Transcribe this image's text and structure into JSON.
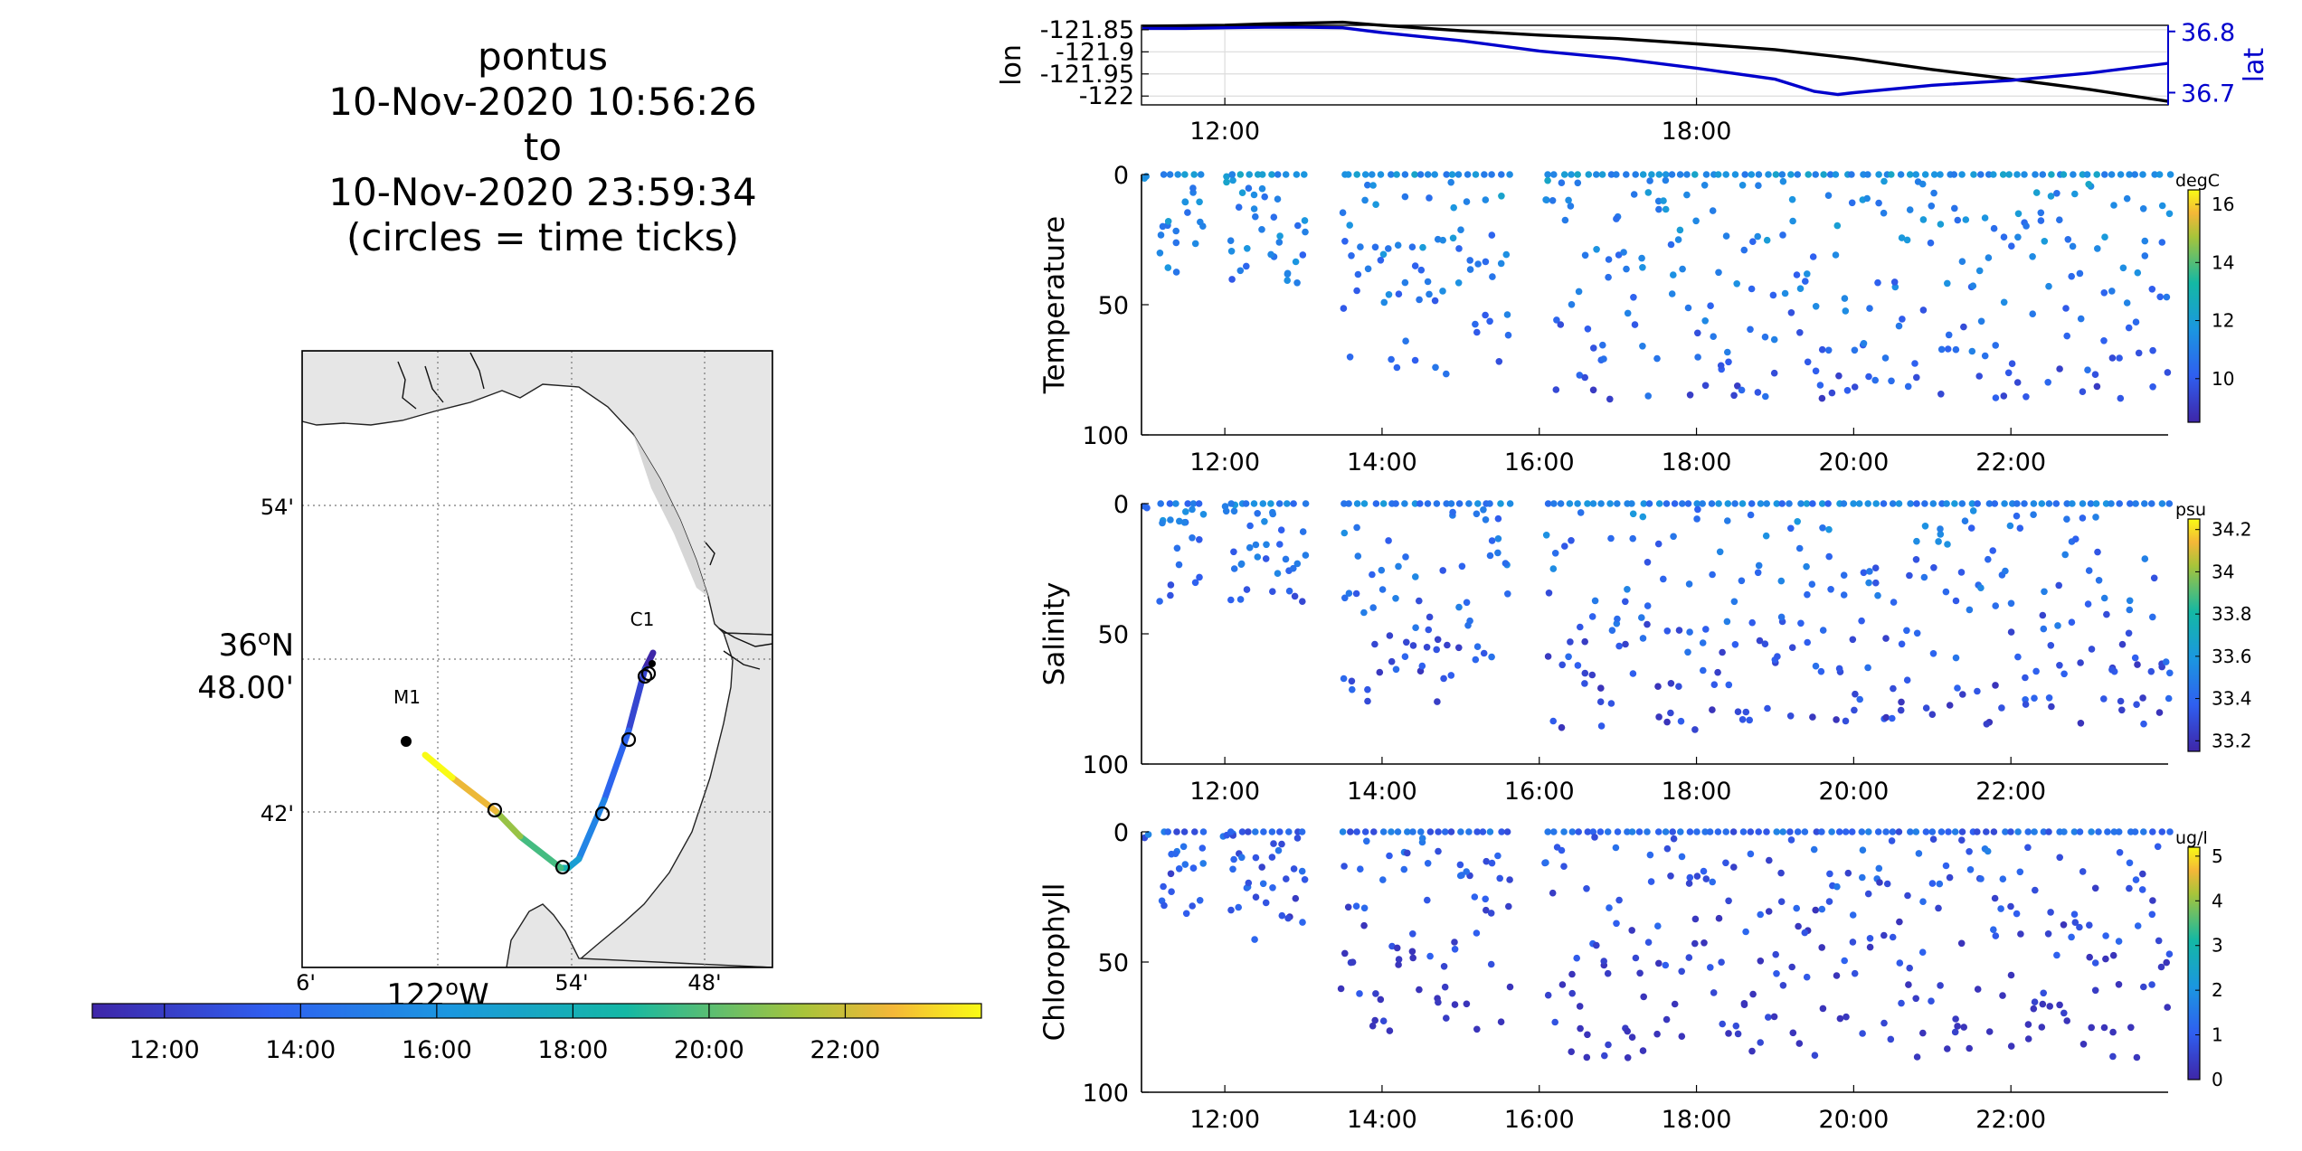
{
  "title": {
    "lines": [
      "pontus",
      "10-Nov-2020 10:56:26",
      "to",
      "10-Nov-2020 23:59:34",
      "(circles = time ticks)"
    ]
  },
  "map": {
    "lat_ticks": [
      "54'",
      "36",
      "48.00'",
      "42'"
    ],
    "lat_major_degree": "o",
    "lat_major_hemisphere": "N",
    "lon_ticks": [
      "6'",
      "54'",
      "48'"
    ],
    "lon_major": "122",
    "lon_major_degree": "o",
    "lon_major_hemisphere": "W",
    "stations": [
      {
        "name": "C1"
      },
      {
        "name": "M1"
      }
    ],
    "land_color": "#e6e6e6",
    "track_color_range": [
      "#3e26a8",
      "#f9fb15"
    ]
  },
  "time_colorbar": {
    "ticks": [
      "12:00",
      "14:00",
      "16:00",
      "18:00",
      "20:00",
      "22:00"
    ]
  },
  "chart_data": [
    {
      "type": "line",
      "name": "position",
      "xlabel": "",
      "ylabel_left": "lon",
      "ylabel_right": "lat",
      "x_ticks": [
        "12:00",
        "18:00"
      ],
      "x_range_hours": [
        10.94,
        24.0
      ],
      "y_left_ticks": [
        "-121.85",
        "-121.9",
        "-121.95",
        "-122"
      ],
      "y_left_range": [
        -122.02,
        -121.84
      ],
      "y_right_ticks": [
        "36.8",
        "36.7"
      ],
      "y_right_range": [
        36.68,
        36.81
      ],
      "grid": true,
      "series": [
        {
          "name": "lon",
          "color": "#000000",
          "x": [
            10.95,
            11.5,
            12.0,
            12.5,
            13.0,
            13.5,
            14.0,
            15.0,
            16.0,
            17.0,
            18.0,
            19.0,
            20.0,
            21.0,
            22.0,
            23.0,
            24.0
          ],
          "y": [
            -121.842,
            -121.841,
            -121.84,
            -121.837,
            -121.835,
            -121.833,
            -121.84,
            -121.852,
            -121.862,
            -121.87,
            -121.882,
            -121.895,
            -121.915,
            -121.94,
            -121.962,
            -121.985,
            -122.012
          ]
        },
        {
          "name": "lat",
          "color": "#0000cc",
          "x": [
            10.95,
            11.5,
            12.0,
            12.5,
            13.0,
            13.5,
            14.0,
            15.0,
            16.0,
            17.0,
            18.0,
            19.0,
            19.5,
            19.8,
            20.0,
            21.0,
            22.0,
            23.0,
            24.0
          ],
          "y": [
            36.805,
            36.805,
            36.806,
            36.807,
            36.807,
            36.806,
            36.798,
            36.785,
            36.768,
            36.756,
            36.74,
            36.722,
            36.702,
            36.697,
            36.7,
            36.712,
            36.72,
            36.732,
            36.748
          ]
        }
      ]
    },
    {
      "type": "scatter",
      "name": "temperature",
      "ylabel": "Temperature",
      "x_ticks": [
        "12:00",
        "14:00",
        "16:00",
        "18:00",
        "20:00",
        "22:00"
      ],
      "x_range_hours": [
        10.94,
        24.0
      ],
      "y_ticks": [
        "0",
        "50",
        "100"
      ],
      "y_range_reversed": [
        0,
        100
      ],
      "colorbar": {
        "unit": "degC",
        "ticks": [
          "16",
          "14",
          "12",
          "10"
        ],
        "range": [
          8.5,
          16.5
        ]
      },
      "low_color": "#3e26a8",
      "high_color": "#f9fb15",
      "color_value": 11.6,
      "min_depth": 38,
      "max_depth": 92,
      "profile_period_hours": 0.2,
      "profiles": [
        {
          "start": 11.0,
          "end": 11.0,
          "depth": 0
        },
        {
          "start": 11.2,
          "end": 11.7,
          "depth": 36
        },
        {
          "start": 12.0,
          "end": 12.1,
          "depth": 0
        },
        {
          "start": 12.1,
          "end": 13.0,
          "depth": 40
        },
        {
          "start": 13.5,
          "end": 15.6,
          "depth": 75
        },
        {
          "start": 16.1,
          "end": 24.0,
          "depth": 85
        }
      ]
    },
    {
      "type": "scatter",
      "name": "salinity",
      "ylabel": "Salinity",
      "x_ticks": [
        "12:00",
        "14:00",
        "16:00",
        "18:00",
        "20:00",
        "22:00"
      ],
      "x_range_hours": [
        10.94,
        24.0
      ],
      "y_ticks": [
        "0",
        "50",
        "100"
      ],
      "y_range_reversed": [
        0,
        100
      ],
      "colorbar": {
        "unit": "psu",
        "ticks": [
          "34.2",
          "34",
          "33.8",
          "33.6",
          "33.4",
          "33.2"
        ],
        "range": [
          33.15,
          34.25
        ]
      },
      "low_color": "#3e26a8",
      "high_color": "#f9fb15",
      "color_value": 33.5,
      "min_depth": 38,
      "max_depth": 92,
      "profile_period_hours": 0.2,
      "profiles": [
        {
          "start": 11.0,
          "end": 11.0,
          "depth": 0
        },
        {
          "start": 11.2,
          "end": 11.7,
          "depth": 36
        },
        {
          "start": 12.0,
          "end": 12.1,
          "depth": 0
        },
        {
          "start": 12.1,
          "end": 13.0,
          "depth": 40
        },
        {
          "start": 13.5,
          "end": 15.6,
          "depth": 75
        },
        {
          "start": 16.1,
          "end": 24.0,
          "depth": 85
        }
      ]
    },
    {
      "type": "scatter",
      "name": "chlorophyll",
      "ylabel": "Chlorophyll",
      "x_ticks": [
        "12:00",
        "14:00",
        "16:00",
        "18:00",
        "20:00",
        "22:00"
      ],
      "x_range_hours": [
        10.94,
        24.0
      ],
      "y_ticks": [
        "0",
        "50",
        "100"
      ],
      "y_range_reversed": [
        0,
        100
      ],
      "colorbar": {
        "unit": "ug/l",
        "ticks": [
          "5",
          "4",
          "3",
          "2",
          "1",
          "0"
        ],
        "range": [
          0,
          5.2
        ]
      },
      "low_color": "#3e26a8",
      "high_color": "#f9fb15",
      "color_value": 1.2,
      "min_depth": 38,
      "max_depth": 92,
      "profile_period_hours": 0.2,
      "profiles": [
        {
          "start": 11.0,
          "end": 11.0,
          "depth": 0
        },
        {
          "start": 11.2,
          "end": 11.7,
          "depth": 36
        },
        {
          "start": 12.0,
          "end": 12.1,
          "depth": 0
        },
        {
          "start": 12.1,
          "end": 13.0,
          "depth": 40
        },
        {
          "start": 13.5,
          "end": 15.6,
          "depth": 75
        },
        {
          "start": 16.1,
          "end": 24.0,
          "depth": 85
        }
      ]
    }
  ]
}
